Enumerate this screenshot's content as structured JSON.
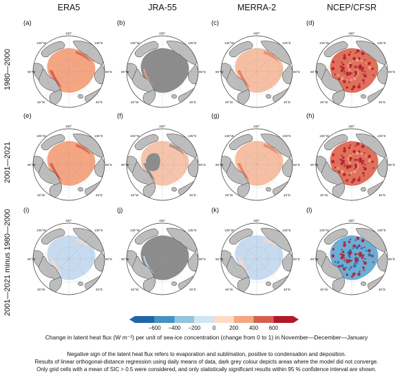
{
  "columns": [
    "ERA5",
    "JRA-55",
    "MERRA-2",
    "NCEP/CFSR"
  ],
  "rows": [
    "1980—2000",
    "2001—2021",
    "2001—2021 minus 1980—2000"
  ],
  "panel_labels": [
    "(a)",
    "(b)",
    "(c)",
    "(d)",
    "(e)",
    "(f)",
    "(g)",
    "(h)",
    "(i)",
    "(j)",
    "(k)",
    "(l)"
  ],
  "longitude_labels": {
    "top": "180°",
    "upper_left": "135°W",
    "upper_right": "135°E",
    "left": "90°W",
    "right": "90°E",
    "lower_left": "45°W",
    "lower_right": "45°E"
  },
  "panels": [
    {
      "id": "a",
      "fill": "#f4a582",
      "accent": "#d6604d",
      "mottled": false
    },
    {
      "id": "b",
      "fill": "#8c8c8c",
      "accent": "#f4a582",
      "mottled": false,
      "grey_center": true
    },
    {
      "id": "c",
      "fill": "#f6bfa3",
      "accent": "#e58267",
      "mottled": false
    },
    {
      "id": "d",
      "fill": "#e0705a",
      "accent": "#b2182b",
      "mottled": true
    },
    {
      "id": "e",
      "fill": "#f4a582",
      "accent": "#d6604d",
      "mottled": false
    },
    {
      "id": "f",
      "fill": "#f6c4ab",
      "accent": "#8c8c8c",
      "mottled": false,
      "grey_center": true
    },
    {
      "id": "g",
      "fill": "#f6bfa3",
      "accent": "#e58267",
      "mottled": false
    },
    {
      "id": "h",
      "fill": "#e0705a",
      "accent": "#b2182b",
      "mottled": true
    },
    {
      "id": "i",
      "fill": "#c6dbef",
      "accent": "#f7d8c8",
      "mottled": false
    },
    {
      "id": "j",
      "fill": "#8c8c8c",
      "accent": "#c6dbef",
      "mottled": false,
      "grey_center": true
    },
    {
      "id": "k",
      "fill": "#c6dbef",
      "accent": "#f7d8c8",
      "mottled": false
    },
    {
      "id": "l",
      "fill": "#6baed6",
      "accent": "#b2182b",
      "mottled": true
    }
  ],
  "colorbar": {
    "ticks": [
      "−600",
      "−400",
      "−200",
      "0",
      "200",
      "400",
      "600"
    ],
    "colors": [
      "#2166ac",
      "#4393c3",
      "#92c5de",
      "#d1e5f0",
      "#fddbc7",
      "#f4a582",
      "#d6604d",
      "#b2182b"
    ],
    "label": "Change in latent heat flux (W m⁻²) per unit of sea-ice concentration (change from 0 to 1) in November—December—January"
  },
  "notes": [
    "Negative sign of the latent heat flux refers to evaporation and sublimation, positive to condensation and deposition.",
    "Results of linear orthogonal-distance regression using daily means of data, dark grey colour depicts areas where the model did not converge.",
    "Only grid cells with a mean of SIC > 0.5 were considered, and only statistically significant results within 95 % confidence interval are shown."
  ]
}
